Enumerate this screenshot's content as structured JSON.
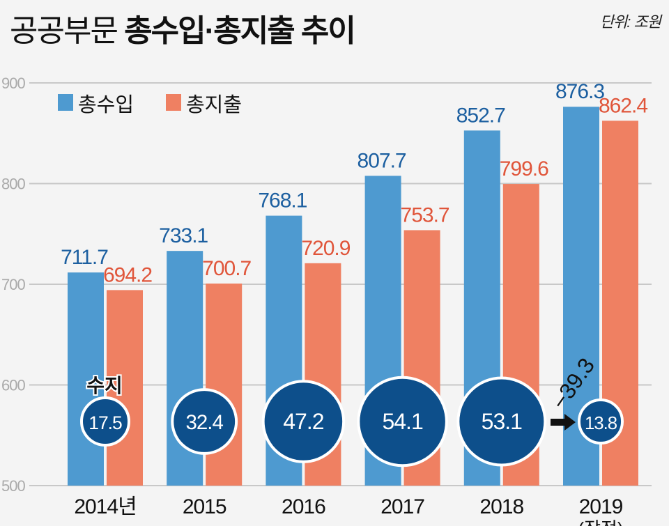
{
  "title": {
    "light": "공공부문",
    "bold": "총수입·총지출 추이"
  },
  "unit": "단위: 조원",
  "chart_data": {
    "type": "bar",
    "categories": [
      "2014년",
      "2015",
      "2016",
      "2017",
      "2018",
      "2019"
    ],
    "category_sublabels": [
      "",
      "",
      "",
      "",
      "",
      "(잠정)"
    ],
    "series": [
      {
        "name": "총수입",
        "color": "#4e9ad0",
        "label_color": "#1c5fa0",
        "values": [
          711.7,
          733.1,
          768.1,
          807.7,
          852.7,
          876.3
        ]
      },
      {
        "name": "총지출",
        "color": "#ef8062",
        "label_color": "#e0553a",
        "values": [
          694.2,
          700.7,
          720.9,
          753.7,
          799.6,
          862.4
        ]
      }
    ],
    "balance": {
      "label": "수지",
      "values": [
        17.5,
        32.4,
        47.2,
        54.1,
        53.1,
        13.8
      ],
      "color": "#0d4f8b"
    },
    "annotation": {
      "text": "−39.3",
      "icon": "arrow-right-icon"
    },
    "yticks": [
      500,
      600,
      700,
      800,
      900
    ],
    "ylim": [
      500,
      900
    ],
    "grid": true,
    "legend": "top-left"
  }
}
